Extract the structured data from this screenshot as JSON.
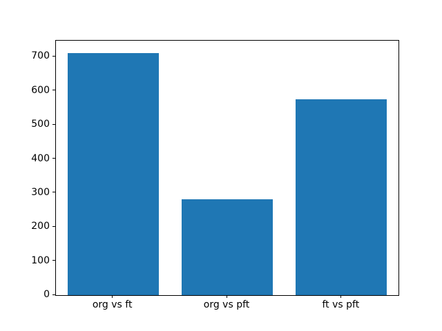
{
  "figure": {
    "background": "#ffffff",
    "frame_color": "#000000"
  },
  "chart_data": {
    "type": "bar",
    "title": "",
    "xlabel": "",
    "ylabel": "",
    "categories": [
      "org vs ft",
      "org vs pft",
      "ft vs pft"
    ],
    "values": [
      712,
      282,
      576
    ],
    "bar_color": "#1f77b4",
    "ylim": [
      0,
      747.6
    ],
    "yticks": [
      0,
      100,
      200,
      300,
      400,
      500,
      600,
      700
    ],
    "grid": false,
    "legend": null,
    "bar_width_fraction": 0.8
  }
}
